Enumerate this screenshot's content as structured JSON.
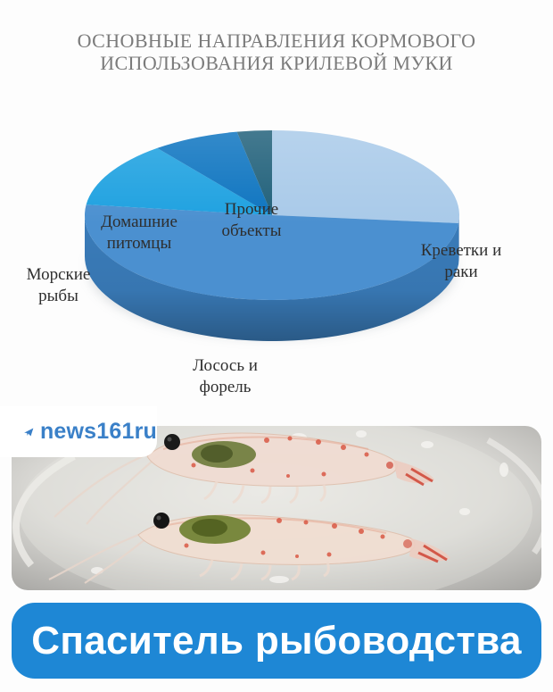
{
  "chart_data": {
    "type": "pie",
    "style": "3d",
    "title": "ОСНОВНЫЕ НАПРАВЛЕНИЯ КОРМОВОГО ИСПОЛЬЗОВАНИЯ КРИЛЕВОЙ МУКИ",
    "title_lines": [
      "ОСНОВНЫЕ НАПРАВЛЕНИЯ КОРМОВОГО",
      "ИСПОЛЬЗОВАНИЯ КРИЛЕВОЙ МУКИ"
    ],
    "start_angle_deg": 0,
    "direction": "clockwise",
    "legend_position": "labels-around-pie",
    "values_estimated_from_angles": true,
    "slices": [
      {
        "label": "Креветки и раки",
        "value_pct": 26.5,
        "color": "#a9cae9",
        "side_color": "#86abd0"
      },
      {
        "label": "Лосось и форель",
        "value_pct": 50.5,
        "color": "#4b90d0",
        "side_color": "#3a7cba"
      },
      {
        "label": "Морские рыбы",
        "value_pct": 12.5,
        "color": "#1ea1e0",
        "side_color": "#1884ba"
      },
      {
        "label": "Домашние питомцы",
        "value_pct": 7.5,
        "color": "#0d74c0",
        "side_color": "#0a5e9e"
      },
      {
        "label": "Прочие объекты",
        "value_pct": 3.0,
        "color": "#20607a",
        "side_color": "#194d62"
      }
    ]
  },
  "watermark": {
    "text": "news161ru",
    "icon": "telegram-plane-icon",
    "color": "#3a80c8"
  },
  "banner": {
    "text": "Спаситель рыбоводства",
    "bg_color": "#1e87d5",
    "text_color": "#ffffff"
  },
  "photo": {
    "subject": "krill-photo"
  }
}
